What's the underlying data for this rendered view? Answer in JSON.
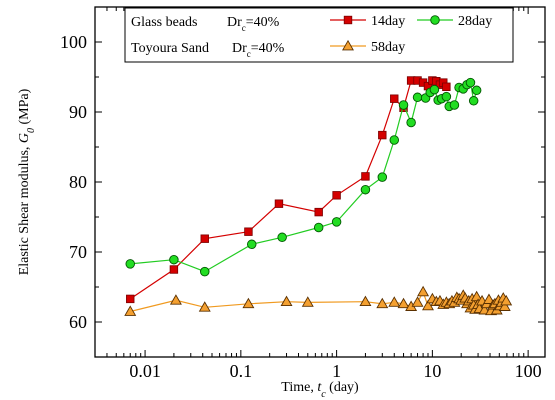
{
  "chart_data": {
    "type": "scatter",
    "x_scale": "log",
    "xlim": [
      0.003,
      150
    ],
    "ylim": [
      55,
      105
    ],
    "x_ticks": [
      0.01,
      0.1,
      1,
      10,
      100
    ],
    "x_tick_labels": [
      "0.01",
      "0.1",
      "1",
      "10",
      "100"
    ],
    "y_ticks": [
      60,
      70,
      80,
      90,
      100
    ],
    "y_tick_labels": [
      "60",
      "70",
      "80",
      "90",
      "100"
    ],
    "xlabel": {
      "main": "Time, ",
      "sym": "t",
      "sub": "c",
      "tail": " (day)"
    },
    "ylabel": {
      "main": "Elastic Shear modulus, ",
      "sym": "G",
      "sub": "0",
      "tail": " (MPa)"
    },
    "grid": false,
    "legend": {
      "placement": "top",
      "rows": [
        {
          "material": "Glass beads",
          "dr_main": "Dr",
          "dr_sub": "c",
          "dr_tail": "=40%"
        },
        {
          "material": "Toyoura Sand",
          "dr_main": "Dr",
          "dr_sub": "c",
          "dr_tail": "=40%"
        }
      ]
    },
    "series": [
      {
        "name": "14day",
        "marker": "square",
        "color": "#d40000",
        "line_color": "#d40000",
        "edge_color": "#7a0000",
        "points": [
          [
            0.007,
            63.3
          ],
          [
            0.02,
            67.5
          ],
          [
            0.042,
            71.9
          ],
          [
            0.12,
            72.9
          ],
          [
            0.25,
            76.9
          ],
          [
            0.65,
            75.7
          ],
          [
            1.0,
            78.1
          ],
          [
            2.0,
            80.8
          ],
          [
            3.0,
            86.7
          ],
          [
            4.0,
            91.9
          ],
          [
            5.0,
            90.6
          ],
          [
            6.0,
            94.5
          ],
          [
            7.0,
            94.5
          ],
          [
            8.0,
            94.2
          ],
          [
            9.0,
            93.7
          ],
          [
            10.0,
            94.5
          ],
          [
            11.0,
            94.4
          ],
          [
            12.0,
            93.9
          ],
          [
            13.0,
            94.2
          ],
          [
            14.0,
            93.6
          ]
        ]
      },
      {
        "name": "28day",
        "marker": "circle",
        "color": "#22dd22",
        "line_color": "#22cc22",
        "edge_color": "#005500",
        "points": [
          [
            0.007,
            68.3
          ],
          [
            0.02,
            68.9
          ],
          [
            0.042,
            67.2
          ],
          [
            0.13,
            71.1
          ],
          [
            0.27,
            72.1
          ],
          [
            0.65,
            73.5
          ],
          [
            1.0,
            74.3
          ],
          [
            2.0,
            78.9
          ],
          [
            3.0,
            80.7
          ],
          [
            4.0,
            86.0
          ],
          [
            5.0,
            91.0
          ],
          [
            6.0,
            88.5
          ],
          [
            7.0,
            92.1
          ],
          [
            8.5,
            92.0
          ],
          [
            9.5,
            92.8
          ],
          [
            10.5,
            93.2
          ],
          [
            11.5,
            91.7
          ],
          [
            12.5,
            91.9
          ],
          [
            14.0,
            92.2
          ],
          [
            15.0,
            90.8
          ],
          [
            17.0,
            91.0
          ],
          [
            19.0,
            93.5
          ],
          [
            21.0,
            93.3
          ],
          [
            23.0,
            93.9
          ],
          [
            25.0,
            94.2
          ],
          [
            27.0,
            91.6
          ],
          [
            29.0,
            93.1
          ]
        ]
      },
      {
        "name": "58day",
        "marker": "triangle",
        "color": "#f4a030",
        "line_color": "#f09a20",
        "edge_color": "#5a3000",
        "points": [
          [
            0.007,
            61.5
          ],
          [
            0.021,
            63.1
          ],
          [
            0.042,
            62.1
          ],
          [
            0.12,
            62.6
          ],
          [
            0.3,
            62.9
          ],
          [
            0.5,
            62.8
          ],
          [
            2.0,
            62.9
          ],
          [
            3.0,
            62.6
          ],
          [
            4.0,
            62.8
          ],
          [
            5.0,
            62.6
          ],
          [
            6.0,
            62.2
          ],
          [
            7.0,
            62.8
          ],
          [
            8.0,
            64.3
          ],
          [
            9.0,
            62.3
          ],
          [
            10.0,
            63.3
          ],
          [
            11.0,
            62.9
          ],
          [
            12.0,
            63.0
          ],
          [
            13.0,
            62.5
          ],
          [
            14.0,
            62.8
          ],
          [
            15.0,
            62.6
          ],
          [
            16.0,
            63.0
          ],
          [
            17.0,
            62.8
          ],
          [
            18.0,
            63.5
          ],
          [
            19.0,
            63.3
          ],
          [
            20.0,
            63.1
          ],
          [
            21.0,
            63.8
          ],
          [
            22.0,
            63.4
          ],
          [
            23.0,
            62.6
          ],
          [
            24.0,
            63.0
          ],
          [
            25.0,
            62.0
          ],
          [
            26.0,
            63.3
          ],
          [
            27.0,
            62.4
          ],
          [
            28.0,
            61.8
          ],
          [
            29.0,
            63.6
          ],
          [
            30.0,
            62.5
          ],
          [
            31.0,
            61.9
          ],
          [
            33.0,
            63.0
          ],
          [
            35.0,
            61.7
          ],
          [
            37.0,
            62.6
          ],
          [
            39.0,
            63.2
          ],
          [
            41.0,
            61.6
          ],
          [
            43.0,
            62.4
          ],
          [
            45.0,
            62.6
          ],
          [
            47.0,
            61.7
          ],
          [
            49.0,
            63.1
          ],
          [
            51.0,
            62.3
          ],
          [
            53.0,
            62.8
          ],
          [
            55.0,
            63.4
          ],
          [
            57.0,
            62.2
          ],
          [
            59.0,
            63.0
          ]
        ]
      }
    ]
  }
}
